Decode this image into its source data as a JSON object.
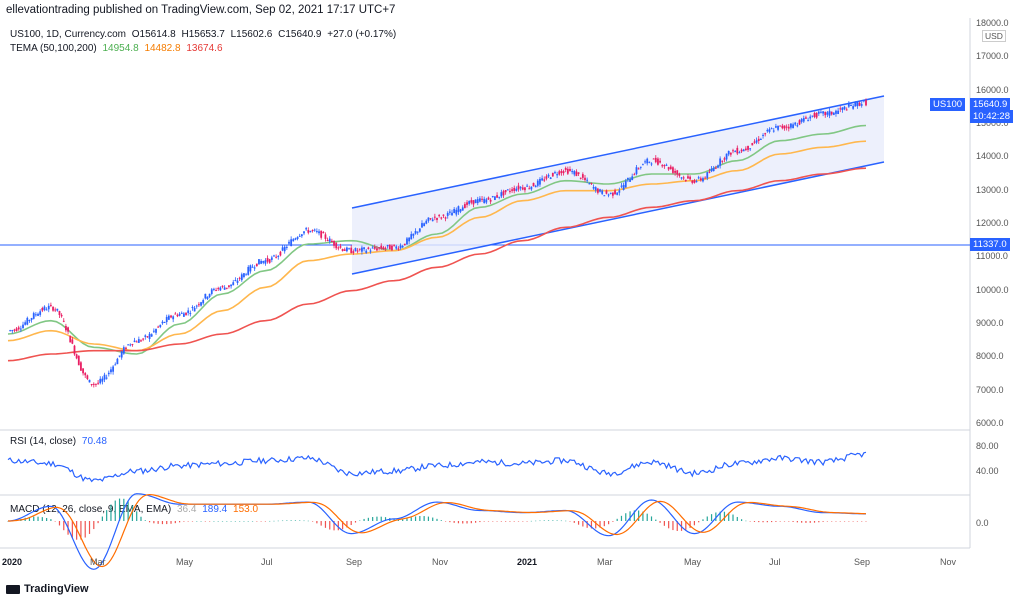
{
  "header": {
    "published": "ellevationtrading published on TradingView.com, Sep 02, 2021 17:17 UTC+7"
  },
  "symbol_legend": {
    "symbol": "US100, 1D, Currency.com",
    "open": "O15614.8",
    "high": "H15653.7",
    "low": "L15602.6",
    "close": "C15640.9",
    "change": "+27.0 (+0.17%)"
  },
  "tema_legend": {
    "label": "TEMA (50,100,200)",
    "v1": "14954.8",
    "v2": "14482.8",
    "v3": "13674.6"
  },
  "rsi_legend": {
    "label": "RSI (14, close)",
    "value": "70.48"
  },
  "macd_legend": {
    "label": "MACD (12, 26, close, 9, EMA, EMA)",
    "hist": "36.4",
    "macd": "189.4",
    "signal": "153.0"
  },
  "price_axis": {
    "currency": "USD",
    "ticks": [
      "18000.0",
      "17000.0",
      "16000.0",
      "15000.0",
      "14000.0",
      "13000.0",
      "12000.0",
      "11000.0",
      "10000.0",
      "9000.0",
      "8000.0",
      "7000.0",
      "6000.0"
    ],
    "symbol_tag": "US100",
    "last_price": "15640.9",
    "countdown": "10:42:28",
    "hline_price": "11337.0"
  },
  "rsi_axis": {
    "ticks": [
      "80.00",
      "40.00"
    ]
  },
  "macd_axis": {
    "ticks": [
      "0.0"
    ]
  },
  "time_axis": {
    "labels": [
      "2020",
      "Mar",
      "May",
      "Jul",
      "Sep",
      "Nov",
      "2021",
      "Mar",
      "May",
      "Jul",
      "Sep",
      "Nov"
    ]
  },
  "branding": {
    "logo_text": "TradingView"
  },
  "colors": {
    "up": "#2962ff",
    "down": "#e91e63",
    "tema50": "#81c784",
    "tema100": "#ffb74d",
    "tema200": "#ef5350",
    "channel": "#2962ff",
    "rsi": "#2962ff",
    "macd": "#2962ff",
    "signal": "#ff6d00"
  },
  "chart_data": {
    "type": "line",
    "title": "US100, 1D, Currency.com",
    "x": [
      "2020-01",
      "2020-02",
      "2020-03",
      "2020-04",
      "2020-05",
      "2020-06",
      "2020-07",
      "2020-08",
      "2020-09",
      "2020-10",
      "2020-11",
      "2020-12",
      "2021-01",
      "2021-02",
      "2021-03",
      "2021-04",
      "2021-05",
      "2021-06",
      "2021-07",
      "2021-08",
      "2021-09"
    ],
    "series": [
      {
        "name": "US100",
        "values": [
          8800,
          9500,
          7200,
          8500,
          9300,
          10100,
          10900,
          11800,
          11200,
          11300,
          12200,
          12700,
          13100,
          13600,
          12900,
          13900,
          13300,
          14200,
          14900,
          15300,
          15640
        ]
      },
      {
        "name": "TEMA 50",
        "values": [
          8700,
          9100,
          8300,
          8100,
          9000,
          9900,
          10600,
          11400,
          11500,
          11200,
          11700,
          12500,
          12900,
          13300,
          13200,
          13500,
          13500,
          13900,
          14500,
          14700,
          14955
        ]
      },
      {
        "name": "TEMA 100",
        "values": [
          8500,
          8800,
          8400,
          8200,
          8700,
          9400,
          10100,
          10900,
          11100,
          11200,
          11600,
          12200,
          12700,
          13000,
          13000,
          13200,
          13300,
          13600,
          14100,
          14300,
          14483
        ]
      },
      {
        "name": "TEMA 200",
        "values": [
          7900,
          8100,
          8200,
          8200,
          8400,
          8700,
          9100,
          9600,
          10000,
          10300,
          10700,
          11100,
          11500,
          11900,
          12200,
          12500,
          12700,
          13000,
          13300,
          13500,
          13675
        ]
      }
    ],
    "xlabel": "",
    "ylabel": "",
    "ylim": [
      6000,
      18000
    ],
    "channel": {
      "upper_start": 12500,
      "upper_end": 15900,
      "lower_start": 10500,
      "lower_end": 13800,
      "start": "2020-09",
      "end": "2021-09"
    },
    "horizontal_line": 11337.0,
    "rsi": {
      "values": [
        62,
        58,
        35,
        48,
        55,
        58,
        62,
        65,
        45,
        48,
        55,
        60,
        58,
        62,
        45,
        60,
        45,
        58,
        65,
        60,
        70.48
      ],
      "ylim": [
        20,
        100
      ]
    },
    "macd": {
      "ylim": [
        -400,
        400
      ]
    }
  }
}
